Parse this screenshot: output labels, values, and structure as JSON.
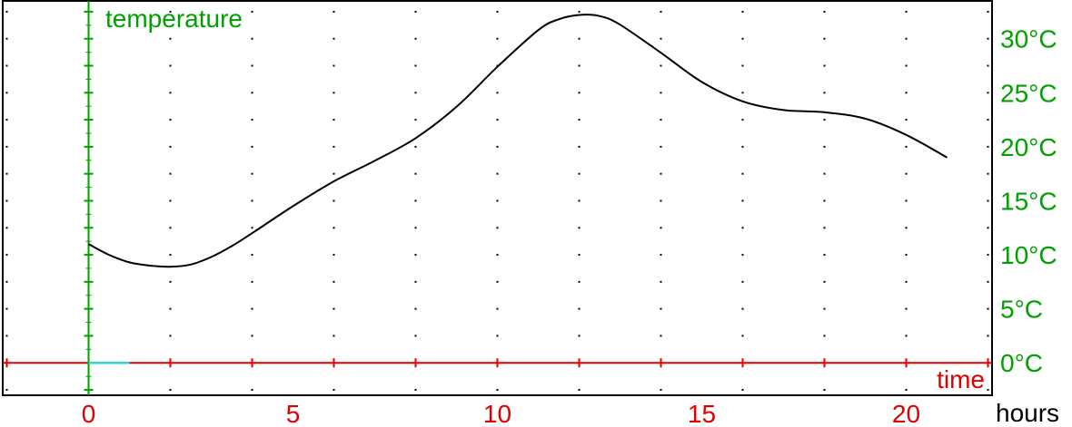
{
  "chart_data": {
    "type": "line",
    "title": "",
    "xlabel": "time",
    "xunit": "hours",
    "ylabel": "temperature",
    "xlim": [
      -2.1,
      22.1
    ],
    "ylim": [
      -3,
      33.5
    ],
    "x_ticks": [
      0,
      5,
      10,
      15,
      20
    ],
    "y_ticks": [
      0,
      5,
      10,
      15,
      20,
      25,
      30
    ],
    "y_tick_labels": [
      "0°C",
      "5°C",
      "10°C",
      "15°C",
      "20°C",
      "25°C",
      "30°C"
    ],
    "grid": "dotted",
    "colors": {
      "x_axis": "#e00000",
      "y_axis": "#00a000",
      "line": "#000000",
      "marker": "#00e5ee"
    },
    "series": [
      {
        "x": [
          0,
          0.5,
          1,
          1.5,
          2,
          2.5,
          3,
          3.5,
          4,
          5,
          6,
          7,
          8,
          9,
          10,
          11,
          11.5,
          12,
          12.5,
          13,
          14,
          15,
          16,
          17,
          18,
          19,
          20,
          21
        ],
        "y": [
          11,
          10,
          9.3,
          9.0,
          8.9,
          9.1,
          9.8,
          10.8,
          12,
          14.5,
          16.8,
          18.7,
          20.8,
          23.7,
          27.4,
          30.8,
          31.8,
          32.2,
          32.1,
          31.3,
          28.7,
          26,
          24.2,
          23.4,
          23.2,
          22.6,
          21.1,
          19
        ]
      }
    ]
  }
}
